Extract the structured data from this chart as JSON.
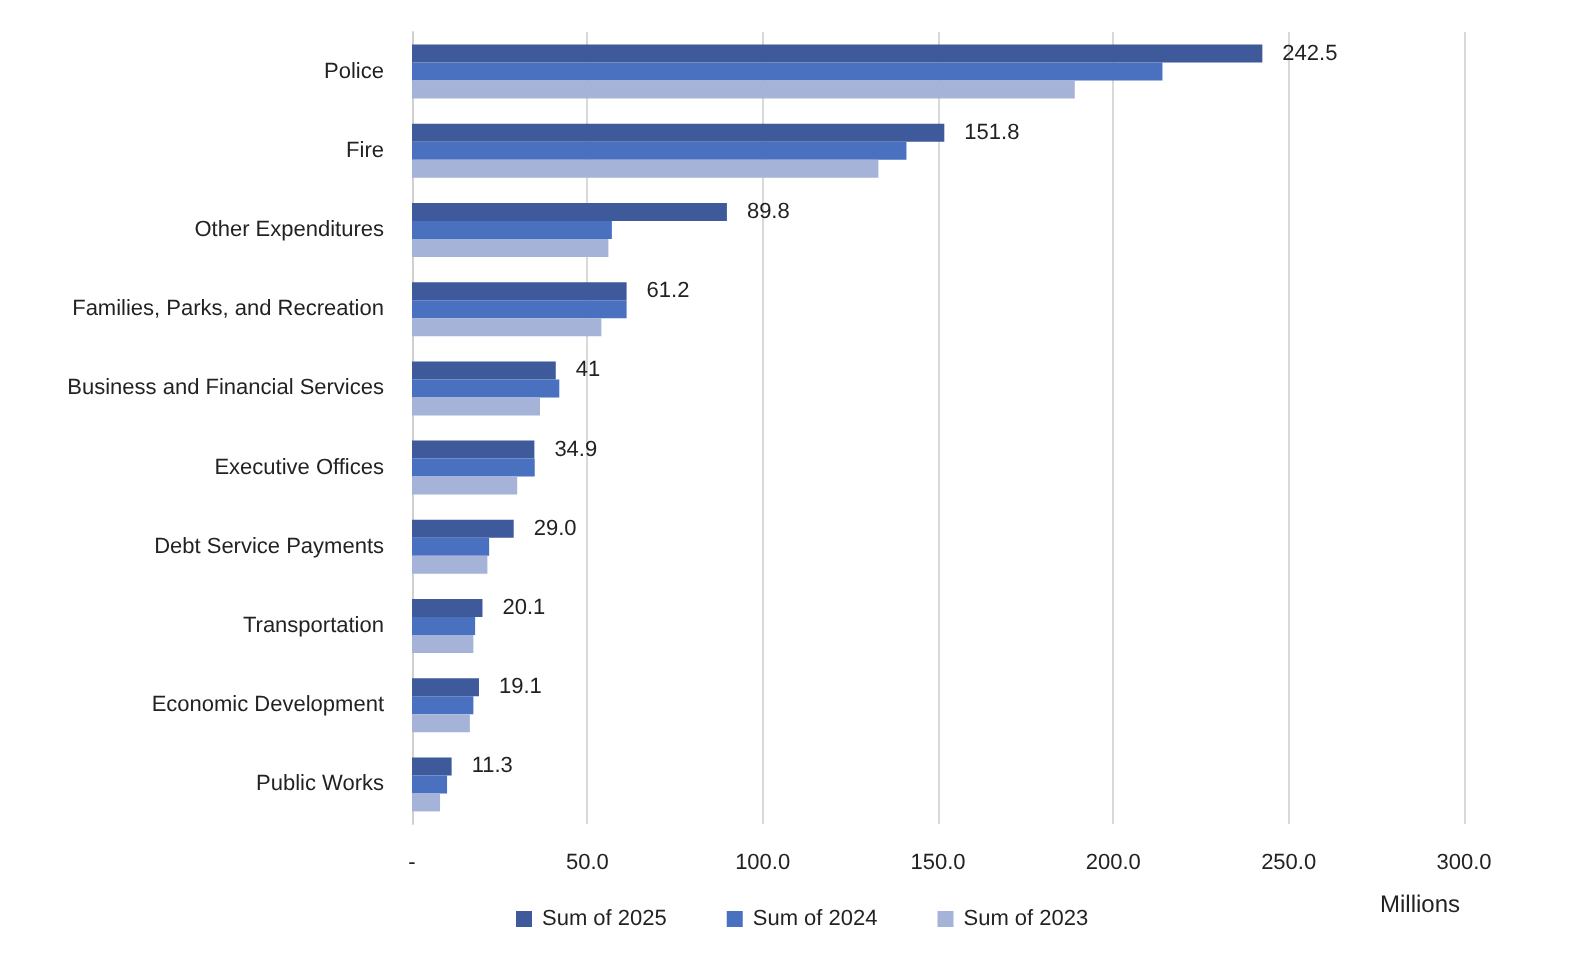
{
  "chart_data": {
    "type": "bar",
    "orientation": "horizontal",
    "xlabel": "Millions",
    "categories": [
      "Police",
      "Fire",
      "Other Expenditures",
      "Families, Parks, and Recreation",
      "Business and Financial Services",
      "Executive Offices",
      "Debt Service Payments",
      "Transportation",
      "Economic Development",
      "Public Works"
    ],
    "series": [
      {
        "name": "Sum of 2025",
        "color": "#3f5a9a",
        "values": [
          242.5,
          151.8,
          89.8,
          61.2,
          41,
          34.9,
          29.0,
          20.1,
          19.1,
          11.3
        ],
        "value_labels": [
          "242.5",
          "151.8",
          "89.8",
          "61.2",
          "41",
          "34.9",
          "29.0",
          "20.1",
          "19.1",
          "11.3"
        ]
      },
      {
        "name": "Sum of 2024",
        "color": "#4a70c0",
        "values": [
          214,
          141,
          57,
          61.2,
          42,
          35,
          22,
          18,
          17.5,
          10
        ]
      },
      {
        "name": "Sum of 2023",
        "color": "#a5b3d9",
        "values": [
          189,
          133,
          56,
          54,
          36.5,
          30,
          21.5,
          17.5,
          16.5,
          8
        ]
      }
    ],
    "xlim": [
      0,
      300
    ],
    "xticks": [
      {
        "value": 0,
        "label": "-"
      },
      {
        "value": 50,
        "label": "50.0"
      },
      {
        "value": 100,
        "label": "100.0"
      },
      {
        "value": 150,
        "label": "150.0"
      },
      {
        "value": 200,
        "label": "200.0"
      },
      {
        "value": 250,
        "label": "250.0"
      },
      {
        "value": 300,
        "label": "300.0"
      }
    ],
    "grid": "x",
    "legend": "bottom"
  }
}
